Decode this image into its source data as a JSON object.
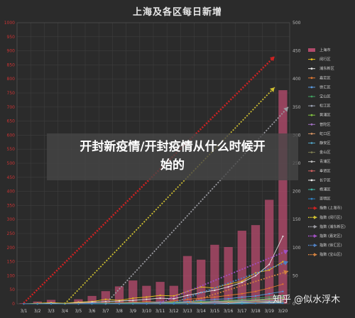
{
  "overlay": {
    "line1": "开封新疫情/开封疫情从什么时候开",
    "line2": "始的"
  },
  "watermark": "知乎 @似水浮木",
  "colors": {
    "bar": "#b04a6a",
    "left_axis": "#cc3333",
    "grid": "#3e3e3e",
    "background": "#2b2b2b"
  },
  "chart_data": {
    "type": "bar",
    "title": "上海及各区每日新增",
    "categories": [
      "3/1",
      "3/2",
      "3/3",
      "3/4",
      "3/5",
      "3/6",
      "3/7",
      "3/8",
      "3/9",
      "3/10",
      "3/11",
      "3/12",
      "3/13",
      "3/14",
      "3/15",
      "3/16",
      "3/17",
      "3/18",
      "3/19",
      "3/20"
    ],
    "y_left": {
      "ylim": [
        0,
        1000
      ],
      "ticks": [
        0,
        50,
        100,
        150,
        200,
        250,
        300,
        350,
        400,
        450,
        500,
        550,
        600,
        650,
        700,
        750,
        800,
        850,
        900,
        950,
        1000
      ]
    },
    "y_right": {
      "ylim": [
        0,
        500
      ],
      "ticks": [
        0,
        50,
        100,
        150,
        200,
        250,
        300,
        350,
        400,
        450,
        500
      ]
    },
    "grid": true,
    "legend_position": "right",
    "series": [
      {
        "name": "上海市",
        "kind": "bar",
        "axis": "left",
        "color": "#b04a6a",
        "values": [
          2,
          8,
          14,
          3,
          16,
          28,
          45,
          62,
          83,
          64,
          78,
          64,
          170,
          157,
          210,
          202,
          260,
          280,
          370,
          760
        ]
      },
      {
        "name": "闵行区",
        "kind": "line",
        "axis": "right",
        "color": "#e8c020",
        "values": [
          0,
          1,
          2,
          1,
          3,
          4,
          8,
          6,
          10,
          12,
          15,
          14,
          22,
          30,
          28,
          35,
          40,
          55,
          60,
          75
        ]
      },
      {
        "name": "浦东新区",
        "kind": "line",
        "axis": "right",
        "color": "#e0e0e0",
        "values": [
          0,
          0,
          1,
          0,
          2,
          3,
          4,
          5,
          6,
          8,
          10,
          9,
          15,
          20,
          24,
          30,
          38,
          50,
          70,
          120
        ]
      },
      {
        "name": "嘉定区",
        "kind": "line",
        "axis": "right",
        "color": "#e07830",
        "values": [
          0,
          0,
          0,
          0,
          1,
          1,
          2,
          2,
          3,
          4,
          3,
          5,
          8,
          10,
          12,
          15,
          18,
          22,
          28,
          35
        ]
      },
      {
        "name": "徐汇区",
        "kind": "line",
        "axis": "right",
        "color": "#5a9ae0",
        "values": [
          0,
          0,
          0,
          0,
          0,
          1,
          1,
          1,
          2,
          2,
          3,
          3,
          4,
          6,
          8,
          9,
          12,
          14,
          18,
          22
        ]
      },
      {
        "name": "宝山区",
        "kind": "line",
        "axis": "right",
        "color": "#40a060",
        "values": [
          0,
          0,
          0,
          0,
          0,
          0,
          1,
          1,
          1,
          2,
          2,
          3,
          3,
          4,
          5,
          6,
          8,
          10,
          12,
          15
        ]
      },
      {
        "name": "松江区",
        "kind": "line",
        "axis": "right",
        "color": "#9aa0b0",
        "values": [
          0,
          0,
          0,
          0,
          0,
          0,
          0,
          1,
          1,
          1,
          2,
          2,
          3,
          3,
          4,
          5,
          6,
          7,
          9,
          12
        ]
      },
      {
        "name": "黄浦区",
        "kind": "line",
        "axis": "right",
        "color": "#80c040",
        "values": [
          0,
          0,
          0,
          0,
          0,
          0,
          0,
          0,
          1,
          1,
          1,
          2,
          2,
          3,
          3,
          4,
          5,
          6,
          8,
          10
        ]
      },
      {
        "name": "普陀区",
        "kind": "line",
        "axis": "right",
        "color": "#a070c0",
        "values": [
          0,
          0,
          0,
          0,
          0,
          0,
          0,
          0,
          0,
          1,
          1,
          1,
          2,
          2,
          3,
          3,
          4,
          5,
          6,
          8
        ]
      },
      {
        "name": "虹口区",
        "kind": "line",
        "axis": "right",
        "color": "#d09060",
        "values": [
          0,
          0,
          0,
          0,
          0,
          0,
          0,
          0,
          0,
          0,
          1,
          1,
          1,
          2,
          2,
          3,
          3,
          4,
          5,
          6
        ]
      },
      {
        "name": "静安区",
        "kind": "line",
        "axis": "right",
        "color": "#50a0c0",
        "values": [
          0,
          0,
          0,
          0,
          0,
          0,
          0,
          0,
          0,
          0,
          0,
          1,
          1,
          1,
          2,
          2,
          3,
          3,
          4,
          5
        ]
      },
      {
        "name": "金山区",
        "kind": "line",
        "axis": "right",
        "color": "#7a7a50",
        "values": [
          0,
          0,
          0,
          0,
          0,
          0,
          0,
          0,
          0,
          0,
          0,
          0,
          1,
          1,
          1,
          2,
          2,
          3,
          3,
          4
        ]
      },
      {
        "name": "青浦区",
        "kind": "line",
        "axis": "right",
        "color": "#c0c0c0",
        "values": [
          0,
          0,
          0,
          0,
          0,
          0,
          0,
          0,
          0,
          0,
          0,
          0,
          0,
          1,
          1,
          1,
          2,
          2,
          3,
          3
        ]
      },
      {
        "name": "奉贤区",
        "kind": "line",
        "axis": "right",
        "color": "#d06060",
        "values": [
          0,
          0,
          0,
          0,
          0,
          0,
          0,
          0,
          0,
          0,
          0,
          0,
          0,
          0,
          1,
          1,
          1,
          2,
          2,
          3
        ]
      },
      {
        "name": "长宁区",
        "kind": "line",
        "axis": "right",
        "color": "#f0f0f0",
        "values": [
          0,
          0,
          0,
          0,
          0,
          0,
          0,
          0,
          0,
          0,
          0,
          0,
          0,
          0,
          0,
          1,
          1,
          1,
          2,
          2
        ]
      },
      {
        "name": "杨浦区",
        "kind": "line",
        "axis": "right",
        "color": "#40b0a0",
        "values": [
          0,
          0,
          0,
          0,
          0,
          0,
          0,
          0,
          0,
          0,
          0,
          0,
          0,
          0,
          0,
          0,
          1,
          1,
          1,
          2
        ]
      },
      {
        "name": "崇明区",
        "kind": "line",
        "axis": "right",
        "color": "#3080c0",
        "values": [
          0,
          0,
          0,
          0,
          0,
          0,
          0,
          0,
          0,
          0,
          0,
          0,
          0,
          0,
          0,
          0,
          0,
          1,
          1,
          1
        ]
      }
    ],
    "trends": [
      {
        "name": "指数 (上海市)",
        "color": "#cc2222",
        "axis": "left",
        "from": [
          0,
          3
        ],
        "to": [
          19,
          880
        ]
      },
      {
        "name": "指数 (闵行区)",
        "color": "#d0c030",
        "axis": "right",
        "from": [
          3,
          0
        ],
        "to": [
          19,
          385
        ]
      },
      {
        "name": "指数 (浦东新区)",
        "color": "#9a9aa0",
        "axis": "right",
        "from": [
          6,
          0
        ],
        "to": [
          20,
          350
        ]
      },
      {
        "name": "指数 (嘉定区)",
        "color": "#a050c0",
        "axis": "right",
        "from": [
          10,
          2
        ],
        "to": [
          20,
          95
        ]
      },
      {
        "name": "指数 (徐汇区)",
        "color": "#5080c0",
        "axis": "right",
        "from": [
          11,
          2
        ],
        "to": [
          20,
          75
        ]
      },
      {
        "name": "指数 (宝山区)",
        "color": "#d08040",
        "axis": "right",
        "from": [
          12,
          2
        ],
        "to": [
          20,
          58
        ]
      }
    ]
  }
}
